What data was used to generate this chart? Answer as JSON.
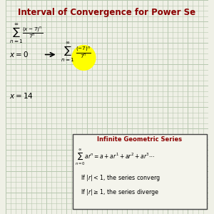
{
  "title": "Interval of Convergence for Power Se",
  "title_color": "#8B0000",
  "title_fontsize": 8.5,
  "bg_color": "#eff0e6",
  "grid_color": "#b8c8b0",
  "text_color": "#000000",
  "box_title_color": "#8B0000",
  "highlight_color": "#ffff00",
  "box_line2": "If |r|< 1, the series converg",
  "box_line3": "If |r|≥ 1, the series diverge"
}
